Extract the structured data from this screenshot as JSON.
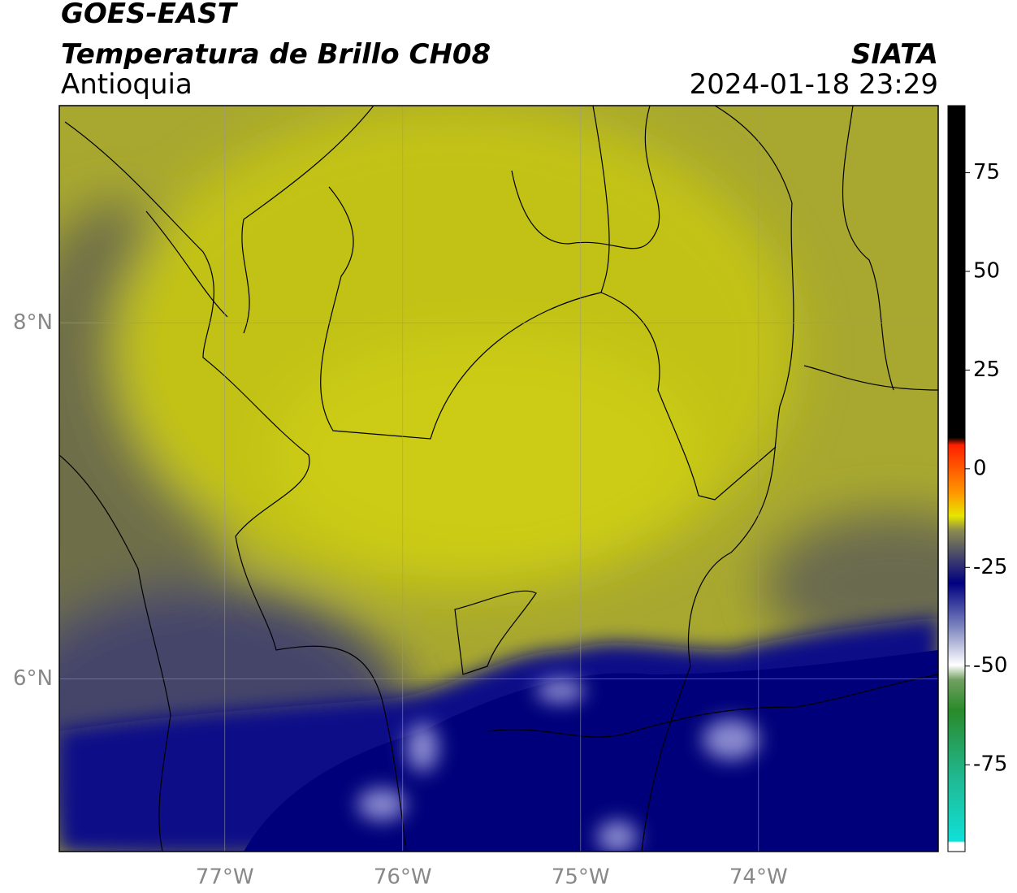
{
  "header": {
    "title": "GOES-EAST",
    "subtitle": "Temperatura de Brillo CH08",
    "source": "SIATA",
    "region": "Antioquia",
    "timestamp": "2024-01-18 23:29"
  },
  "map": {
    "xlim": [
      -77.93,
      -72.99
    ],
    "ylim": [
      5.03,
      9.22
    ],
    "xticks": [
      {
        "value": -77,
        "label": "77°W"
      },
      {
        "value": -76,
        "label": "76°W"
      },
      {
        "value": -75,
        "label": "75°W"
      },
      {
        "value": -74,
        "label": "74°W"
      }
    ],
    "yticks": [
      {
        "value": 6,
        "label": "6°N"
      },
      {
        "value": 8,
        "label": "8°N"
      }
    ],
    "grid": true
  },
  "colorbar": {
    "lim": [
      -97,
      92
    ],
    "ticks": [
      75,
      50,
      25,
      0,
      -25,
      -50,
      -75
    ]
  }
}
